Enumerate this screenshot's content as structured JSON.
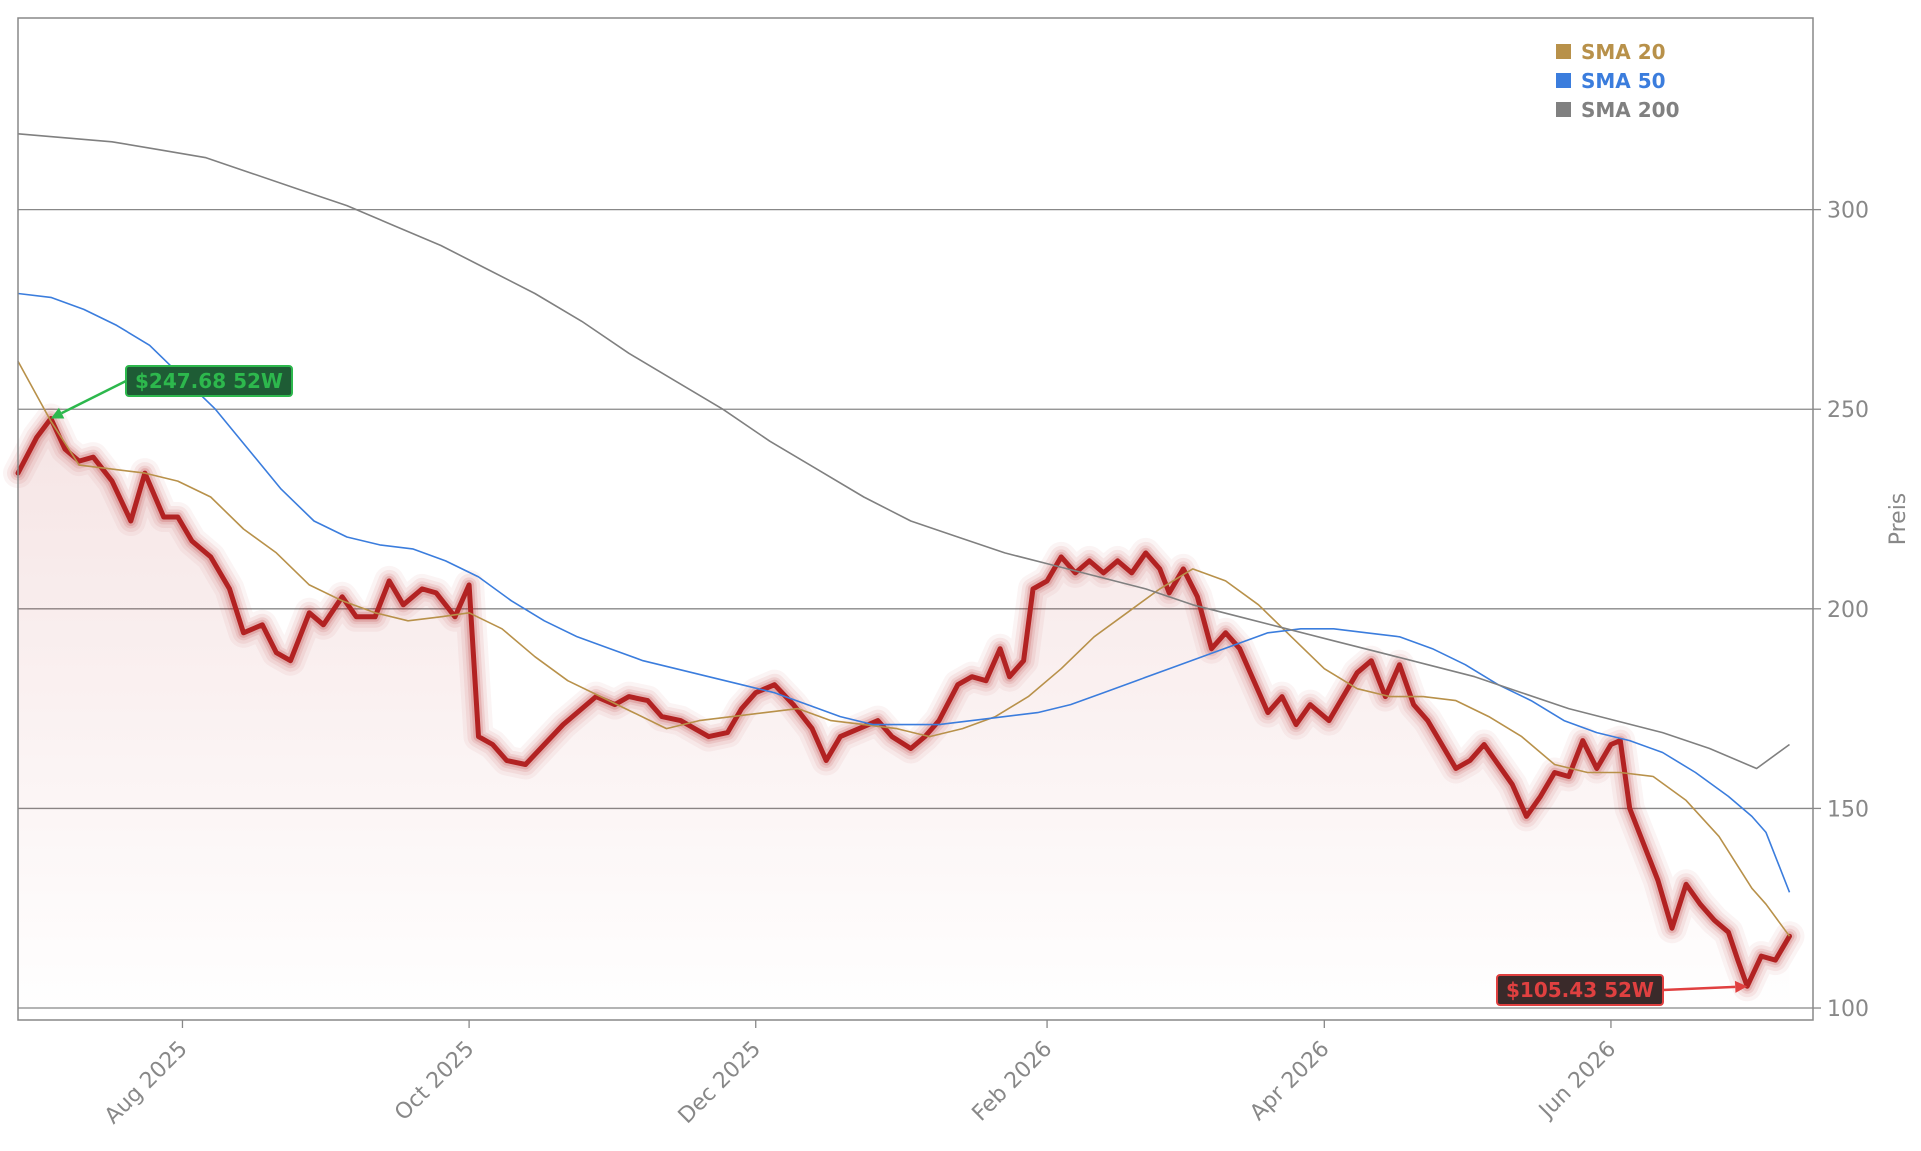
{
  "chart_data": {
    "type": "line",
    "title": "",
    "xlabel": "",
    "ylabel": "Preis",
    "x_start": "2025-07-01",
    "x_end": "2026-06-30",
    "xlim": [
      "2025-06-27",
      "2026-07-14"
    ],
    "ylim": [
      97,
      348
    ],
    "yticks": [
      100,
      150,
      200,
      250,
      300
    ],
    "xticks": [
      {
        "date": "2025-08-01",
        "label": "Aug 2025"
      },
      {
        "date": "2025-10-01",
        "label": "Oct 2025"
      },
      {
        "date": "2025-12-01",
        "label": "Dec 2025"
      },
      {
        "date": "2026-02-01",
        "label": "Feb 2026"
      },
      {
        "date": "2026-04-01",
        "label": "Apr 2026"
      },
      {
        "date": "2026-06-01",
        "label": "Jun 2026"
      }
    ],
    "grid": "horizontal",
    "y_axis_side": "right",
    "legend_position": "top-right",
    "series": [
      {
        "name": "",
        "color": "#b22222",
        "style": "glow-line-with-area",
        "points": [
          [
            "2025-06-27",
            234
          ],
          [
            "2025-07-01",
            243
          ],
          [
            "2025-07-04",
            247.68
          ],
          [
            "2025-07-07",
            240
          ],
          [
            "2025-07-10",
            237
          ],
          [
            "2025-07-13",
            238
          ],
          [
            "2025-07-17",
            232
          ],
          [
            "2025-07-21",
            222
          ],
          [
            "2025-07-24",
            234
          ],
          [
            "2025-07-28",
            223
          ],
          [
            "2025-07-31",
            223
          ],
          [
            "2025-08-03",
            217
          ],
          [
            "2025-08-07",
            213
          ],
          [
            "2025-08-11",
            205
          ],
          [
            "2025-08-14",
            194
          ],
          [
            "2025-08-18",
            196
          ],
          [
            "2025-08-21",
            189
          ],
          [
            "2025-08-24",
            187
          ],
          [
            "2025-08-28",
            199
          ],
          [
            "2025-08-31",
            196
          ],
          [
            "2025-09-04",
            203
          ],
          [
            "2025-09-07",
            198
          ],
          [
            "2025-09-11",
            198
          ],
          [
            "2025-09-14",
            207
          ],
          [
            "2025-09-17",
            201
          ],
          [
            "2025-09-21",
            205
          ],
          [
            "2025-09-24",
            204
          ],
          [
            "2025-09-28",
            198
          ],
          [
            "2025-10-01",
            206
          ],
          [
            "2025-10-03",
            168
          ],
          [
            "2025-10-06",
            166
          ],
          [
            "2025-10-09",
            162
          ],
          [
            "2025-10-13",
            161
          ],
          [
            "2025-10-17",
            166
          ],
          [
            "2025-10-21",
            171
          ],
          [
            "2025-10-25",
            175
          ],
          [
            "2025-10-28",
            178
          ],
          [
            "2025-11-01",
            176
          ],
          [
            "2025-11-04",
            178
          ],
          [
            "2025-11-08",
            177
          ],
          [
            "2025-11-11",
            173
          ],
          [
            "2025-11-15",
            172
          ],
          [
            "2025-11-18",
            170
          ],
          [
            "2025-11-21",
            168
          ],
          [
            "2025-11-25",
            169
          ],
          [
            "2025-11-28",
            175
          ],
          [
            "2025-12-01",
            179
          ],
          [
            "2025-12-05",
            181
          ],
          [
            "2025-12-09",
            176
          ],
          [
            "2025-12-13",
            170
          ],
          [
            "2025-12-16",
            162
          ],
          [
            "2025-12-19",
            168
          ],
          [
            "2025-12-23",
            170
          ],
          [
            "2025-12-27",
            172
          ],
          [
            "2025-12-30",
            168
          ],
          [
            "2026-01-03",
            165
          ],
          [
            "2026-01-06",
            168
          ],
          [
            "2026-01-09",
            172
          ],
          [
            "2026-01-13",
            181
          ],
          [
            "2026-01-16",
            183
          ],
          [
            "2026-01-19",
            182
          ],
          [
            "2026-01-22",
            190
          ],
          [
            "2026-01-24",
            183
          ],
          [
            "2026-01-27",
            187
          ],
          [
            "2026-01-29",
            205
          ],
          [
            "2026-02-01",
            207
          ],
          [
            "2026-02-04",
            213
          ],
          [
            "2026-02-07",
            209
          ],
          [
            "2026-02-10",
            212
          ],
          [
            "2026-02-13",
            209
          ],
          [
            "2026-02-16",
            212
          ],
          [
            "2026-02-19",
            209
          ],
          [
            "2026-02-22",
            214
          ],
          [
            "2026-02-25",
            210
          ],
          [
            "2026-02-27",
            204
          ],
          [
            "2026-03-02",
            210
          ],
          [
            "2026-03-05",
            203
          ],
          [
            "2026-03-08",
            190
          ],
          [
            "2026-03-11",
            194
          ],
          [
            "2026-03-14",
            190
          ],
          [
            "2026-03-17",
            182
          ],
          [
            "2026-03-20",
            174
          ],
          [
            "2026-03-23",
            178
          ],
          [
            "2026-03-26",
            171
          ],
          [
            "2026-03-29",
            176
          ],
          [
            "2026-04-02",
            172
          ],
          [
            "2026-04-05",
            178
          ],
          [
            "2026-04-08",
            184
          ],
          [
            "2026-04-11",
            187
          ],
          [
            "2026-04-14",
            178
          ],
          [
            "2026-04-17",
            186
          ],
          [
            "2026-04-20",
            176
          ],
          [
            "2026-04-23",
            172
          ],
          [
            "2026-04-26",
            166
          ],
          [
            "2026-04-29",
            160
          ],
          [
            "2026-05-02",
            162
          ],
          [
            "2026-05-05",
            166
          ],
          [
            "2026-05-08",
            161
          ],
          [
            "2026-05-11",
            156
          ],
          [
            "2026-05-14",
            148
          ],
          [
            "2026-05-17",
            153
          ],
          [
            "2026-05-20",
            159
          ],
          [
            "2026-05-23",
            158
          ],
          [
            "2026-05-26",
            167
          ],
          [
            "2026-05-29",
            160
          ],
          [
            "2026-06-01",
            166
          ],
          [
            "2026-06-03",
            167
          ],
          [
            "2026-06-05",
            150
          ],
          [
            "2026-06-08",
            141
          ],
          [
            "2026-06-11",
            132
          ],
          [
            "2026-06-14",
            120
          ],
          [
            "2026-06-17",
            131
          ],
          [
            "2026-06-20",
            126
          ],
          [
            "2026-06-23",
            122
          ],
          [
            "2026-06-26",
            119
          ],
          [
            "2026-06-28",
            112
          ],
          [
            "2026-06-30",
            105.43
          ],
          [
            "2026-07-03",
            113
          ],
          [
            "2026-07-06",
            112
          ],
          [
            "2026-07-09",
            118
          ]
        ]
      },
      {
        "name": "SMA 20",
        "color": "#b8914a",
        "points": [
          [
            "2025-06-27",
            262
          ],
          [
            "2025-07-04",
            247
          ],
          [
            "2025-07-10",
            236
          ],
          [
            "2025-07-17",
            235
          ],
          [
            "2025-07-24",
            234
          ],
          [
            "2025-07-31",
            232
          ],
          [
            "2025-08-07",
            228
          ],
          [
            "2025-08-14",
            220
          ],
          [
            "2025-08-21",
            214
          ],
          [
            "2025-08-28",
            206
          ],
          [
            "2025-09-04",
            202
          ],
          [
            "2025-09-11",
            199
          ],
          [
            "2025-09-18",
            197
          ],
          [
            "2025-09-25",
            198
          ],
          [
            "2025-10-01",
            199
          ],
          [
            "2025-10-08",
            195
          ],
          [
            "2025-10-15",
            188
          ],
          [
            "2025-10-22",
            182
          ],
          [
            "2025-10-29",
            178
          ],
          [
            "2025-11-05",
            174
          ],
          [
            "2025-11-12",
            170
          ],
          [
            "2025-11-19",
            172
          ],
          [
            "2025-11-26",
            173
          ],
          [
            "2025-12-03",
            174
          ],
          [
            "2025-12-10",
            175
          ],
          [
            "2025-12-17",
            172
          ],
          [
            "2025-12-24",
            171
          ],
          [
            "2025-12-31",
            170
          ],
          [
            "2026-01-07",
            168
          ],
          [
            "2026-01-14",
            170
          ],
          [
            "2026-01-21",
            173
          ],
          [
            "2026-01-28",
            178
          ],
          [
            "2026-02-04",
            185
          ],
          [
            "2026-02-11",
            193
          ],
          [
            "2026-02-18",
            199
          ],
          [
            "2026-02-25",
            205
          ],
          [
            "2026-03-04",
            210
          ],
          [
            "2026-03-11",
            207
          ],
          [
            "2026-03-18",
            201
          ],
          [
            "2026-03-25",
            193
          ],
          [
            "2026-04-01",
            185
          ],
          [
            "2026-04-08",
            180
          ],
          [
            "2026-04-15",
            178
          ],
          [
            "2026-04-22",
            178
          ],
          [
            "2026-04-29",
            177
          ],
          [
            "2026-05-06",
            173
          ],
          [
            "2026-05-13",
            168
          ],
          [
            "2026-05-20",
            161
          ],
          [
            "2026-05-27",
            159
          ],
          [
            "2026-06-03",
            159
          ],
          [
            "2026-06-10",
            158
          ],
          [
            "2026-06-17",
            152
          ],
          [
            "2026-06-24",
            143
          ],
          [
            "2026-07-01",
            130
          ],
          [
            "2026-07-04",
            126
          ],
          [
            "2026-07-09",
            118
          ]
        ]
      },
      {
        "name": "SMA 50",
        "color": "#3b7ddd",
        "points": [
          [
            "2025-06-27",
            279
          ],
          [
            "2025-07-04",
            278
          ],
          [
            "2025-07-11",
            275
          ],
          [
            "2025-07-18",
            271
          ],
          [
            "2025-07-25",
            266
          ],
          [
            "2025-08-01",
            258
          ],
          [
            "2025-08-08",
            250
          ],
          [
            "2025-08-15",
            240
          ],
          [
            "2025-08-22",
            230
          ],
          [
            "2025-08-29",
            222
          ],
          [
            "2025-09-05",
            218
          ],
          [
            "2025-09-12",
            216
          ],
          [
            "2025-09-19",
            215
          ],
          [
            "2025-09-26",
            212
          ],
          [
            "2025-10-03",
            208
          ],
          [
            "2025-10-10",
            202
          ],
          [
            "2025-10-17",
            197
          ],
          [
            "2025-10-24",
            193
          ],
          [
            "2025-10-31",
            190
          ],
          [
            "2025-11-07",
            187
          ],
          [
            "2025-11-14",
            185
          ],
          [
            "2025-11-21",
            183
          ],
          [
            "2025-11-28",
            181
          ],
          [
            "2025-12-05",
            179
          ],
          [
            "2025-12-12",
            176
          ],
          [
            "2025-12-19",
            173
          ],
          [
            "2025-12-26",
            171
          ],
          [
            "2026-01-02",
            171
          ],
          [
            "2026-01-09",
            171
          ],
          [
            "2026-01-16",
            172
          ],
          [
            "2026-01-23",
            173
          ],
          [
            "2026-01-30",
            174
          ],
          [
            "2026-02-06",
            176
          ],
          [
            "2026-02-13",
            179
          ],
          [
            "2026-02-20",
            182
          ],
          [
            "2026-02-27",
            185
          ],
          [
            "2026-03-06",
            188
          ],
          [
            "2026-03-13",
            191
          ],
          [
            "2026-03-20",
            194
          ],
          [
            "2026-03-27",
            195
          ],
          [
            "2026-04-03",
            195
          ],
          [
            "2026-04-10",
            194
          ],
          [
            "2026-04-17",
            193
          ],
          [
            "2026-04-24",
            190
          ],
          [
            "2026-05-01",
            186
          ],
          [
            "2026-05-08",
            181
          ],
          [
            "2026-05-15",
            177
          ],
          [
            "2026-05-22",
            172
          ],
          [
            "2026-05-29",
            169
          ],
          [
            "2026-06-05",
            167
          ],
          [
            "2026-06-12",
            164
          ],
          [
            "2026-06-19",
            159
          ],
          [
            "2026-06-26",
            153
          ],
          [
            "2026-07-01",
            148
          ],
          [
            "2026-07-04",
            144
          ],
          [
            "2026-07-09",
            129
          ]
        ]
      },
      {
        "name": "SMA 200",
        "color": "#808080",
        "points": [
          [
            "2025-06-27",
            319
          ],
          [
            "2025-07-07",
            318
          ],
          [
            "2025-07-17",
            317
          ],
          [
            "2025-07-27",
            315
          ],
          [
            "2025-08-06",
            313
          ],
          [
            "2025-08-16",
            309
          ],
          [
            "2025-08-26",
            305
          ],
          [
            "2025-09-05",
            301
          ],
          [
            "2025-09-15",
            296
          ],
          [
            "2025-09-25",
            291
          ],
          [
            "2025-10-05",
            285
          ],
          [
            "2025-10-15",
            279
          ],
          [
            "2025-10-25",
            272
          ],
          [
            "2025-11-04",
            264
          ],
          [
            "2025-11-14",
            257
          ],
          [
            "2025-11-24",
            250
          ],
          [
            "2025-12-04",
            242
          ],
          [
            "2025-12-14",
            235
          ],
          [
            "2025-12-24",
            228
          ],
          [
            "2026-01-03",
            222
          ],
          [
            "2026-01-13",
            218
          ],
          [
            "2026-01-23",
            214
          ],
          [
            "2026-02-02",
            211
          ],
          [
            "2026-02-12",
            208
          ],
          [
            "2026-02-22",
            205
          ],
          [
            "2026-03-04",
            201
          ],
          [
            "2026-03-14",
            198
          ],
          [
            "2026-03-24",
            195
          ],
          [
            "2026-04-03",
            192
          ],
          [
            "2026-04-13",
            189
          ],
          [
            "2026-04-23",
            186
          ],
          [
            "2026-05-03",
            183
          ],
          [
            "2026-05-13",
            179
          ],
          [
            "2026-05-23",
            175
          ],
          [
            "2026-06-02",
            172
          ],
          [
            "2026-06-12",
            169
          ],
          [
            "2026-06-22",
            165
          ],
          [
            "2026-07-02",
            160
          ],
          [
            "2026-07-09",
            166
          ]
        ]
      }
    ],
    "annotations": [
      {
        "name": "high",
        "label": "$247.68 52W",
        "date": "2025-07-04",
        "value": 247.68,
        "color": "#2db84d",
        "text_color": "#2db84d",
        "box_fill": "#1e5c35"
      },
      {
        "name": "low",
        "label": "$105.43 52W",
        "date": "2026-06-30",
        "value": 105.43,
        "color": "#e04040",
        "text_color": "#e04040",
        "box_fill": "#3a2a2a"
      }
    ]
  }
}
